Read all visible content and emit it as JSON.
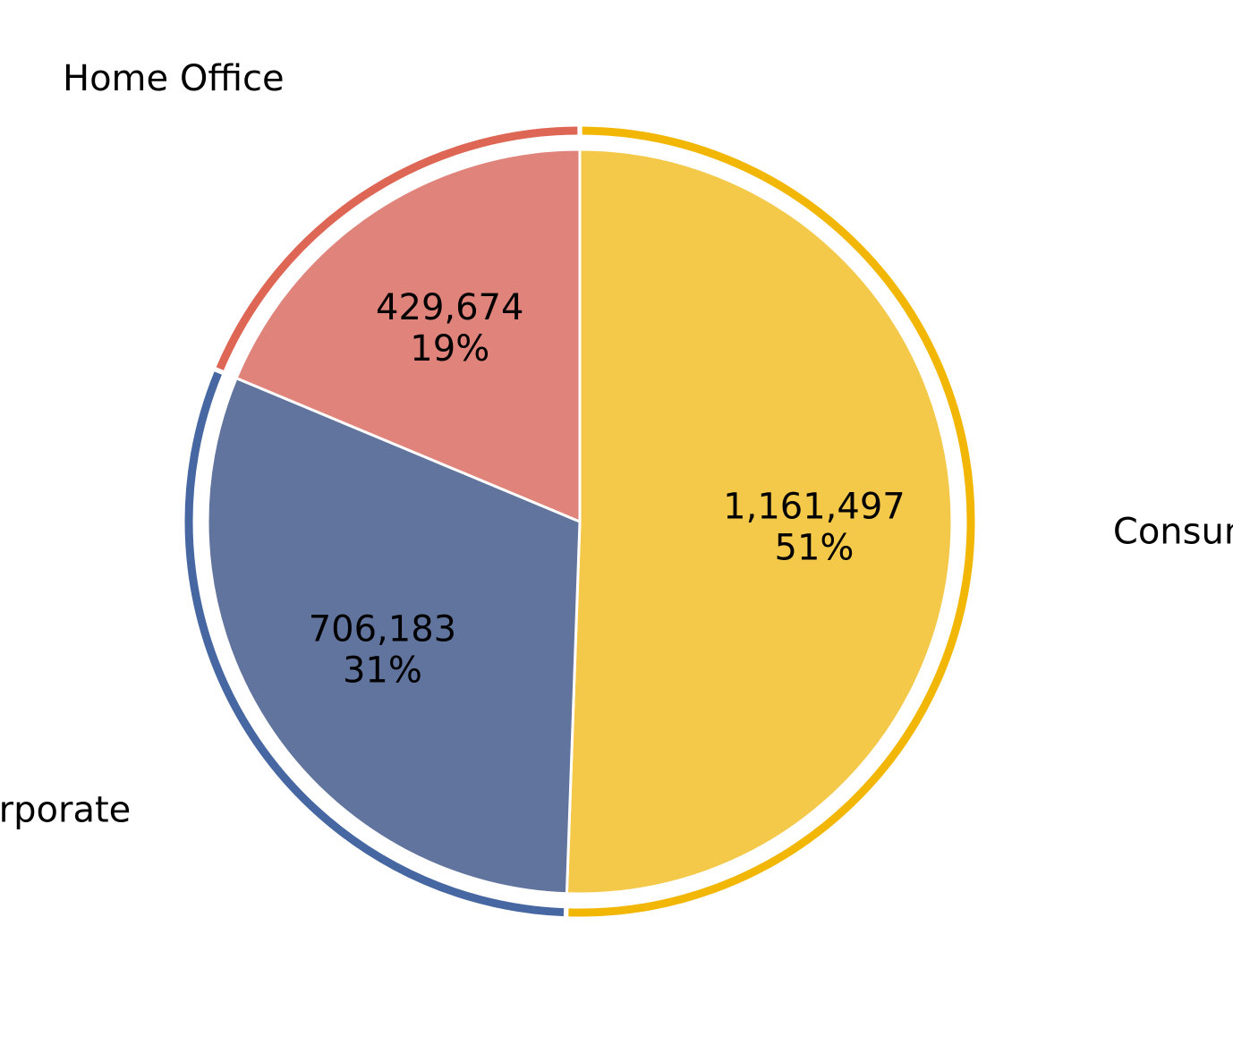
{
  "chart_data": {
    "type": "pie",
    "categories": [
      "Consumer",
      "Corporate",
      "Home Office"
    ],
    "values": [
      1161497,
      706183,
      429674
    ],
    "value_labels": [
      "1,161,497",
      "706,183",
      "429,674"
    ],
    "percent_labels": [
      "51%",
      "31%",
      "19%"
    ],
    "fill_colors": [
      "#F4C94A",
      "#61749E",
      "#E0847B"
    ],
    "ring_colors": [
      "#F2B705",
      "#4667A1",
      "#DE6655"
    ],
    "slice_edge_color": "#ffffff",
    "title": ""
  }
}
